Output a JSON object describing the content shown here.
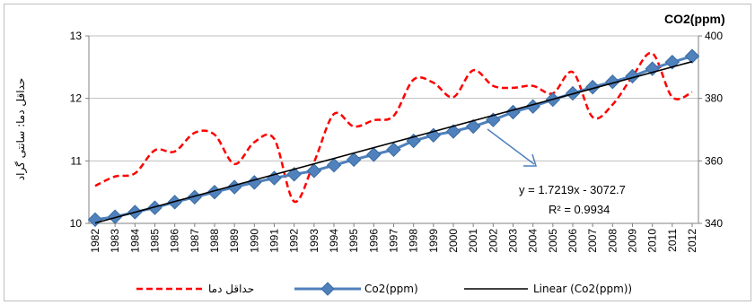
{
  "chart_data": {
    "type": "line",
    "title": "",
    "xlabel": "",
    "ylabel": "حداقل دما: سانتی گراد",
    "y2label": "CO2(ppm)",
    "ylim": [
      10,
      13
    ],
    "y2lim": [
      340,
      400
    ],
    "grid": "horizontal",
    "legend_position": "bottom",
    "categories": [
      "1982",
      "1983",
      "1984",
      "1985",
      "1986",
      "1987",
      "1988",
      "1989",
      "1990",
      "1991",
      "1992",
      "1993",
      "1994",
      "1995",
      "1996",
      "1997",
      "1998",
      "1999",
      "2000",
      "2001",
      "2002",
      "2003",
      "2004",
      "2005",
      "2006",
      "2007",
      "2008",
      "2009",
      "2010",
      "2011",
      "2012"
    ],
    "yticks": [
      "10",
      "11",
      "12",
      "13"
    ],
    "y2ticks": [
      "340",
      "360",
      "380",
      "400"
    ],
    "series": [
      {
        "name": "حداقل دما",
        "axis": "left",
        "style": "dashed",
        "color": "#ff0000",
        "values": [
          10.6,
          10.75,
          10.8,
          11.17,
          11.15,
          11.45,
          11.42,
          10.95,
          11.3,
          11.35,
          10.35,
          10.98,
          11.75,
          11.55,
          11.65,
          11.72,
          12.3,
          12.25,
          12.02,
          12.45,
          12.2,
          12.17,
          12.2,
          12.08,
          12.42,
          11.7,
          11.9,
          12.35,
          12.72,
          12.02,
          12.1
        ]
      },
      {
        "name": "Co2(ppm)",
        "axis": "right",
        "style": "marker-diamond",
        "color": "#4f81bd",
        "values": [
          341.2,
          342.1,
          343.6,
          345.0,
          346.8,
          348.4,
          350.0,
          351.6,
          353.1,
          354.5,
          355.7,
          356.8,
          358.6,
          360.4,
          362.0,
          363.6,
          366.4,
          368.2,
          369.4,
          371.0,
          373.1,
          375.6,
          377.4,
          379.6,
          381.6,
          383.6,
          385.3,
          387.1,
          389.5,
          391.6,
          393.5
        ]
      },
      {
        "name": "Linear (Co2(ppm))",
        "axis": "right",
        "style": "solid",
        "color": "#000000",
        "slope": 1.7219,
        "intercept": -3072.7
      }
    ],
    "annotations": {
      "equation": "y = 1.7219x - 3072.7",
      "r_squared": "R² = 0.9934"
    }
  }
}
